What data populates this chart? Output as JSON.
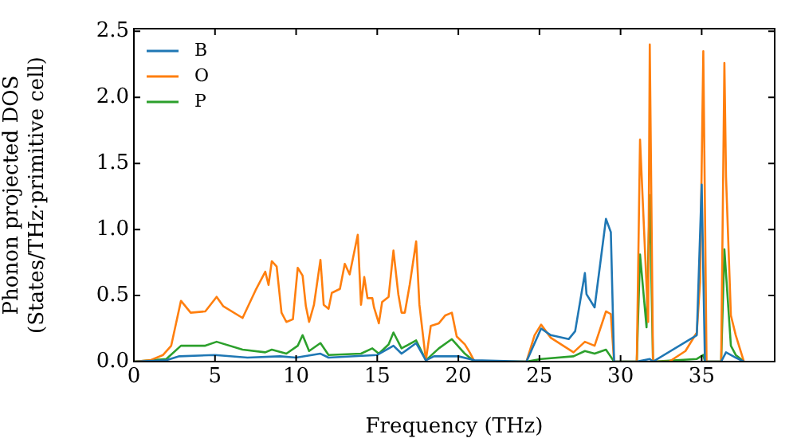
{
  "chart_data": {
    "type": "line",
    "xlabel": "Frequency (THz)",
    "ylabel": "Phonon projected DOS\n(States/THz·primitive cell)",
    "xlim": [
      0,
      39.5
    ],
    "xticks": [
      0,
      5,
      10,
      15,
      20,
      25,
      30,
      35
    ],
    "ylim": [
      0,
      2.52
    ],
    "yticks": [
      {
        "value": 0,
        "label": "0.0"
      },
      {
        "value": 0.5,
        "label": "0.5"
      },
      {
        "value": 1,
        "label": "1.0"
      },
      {
        "value": 1.5,
        "label": "1.5"
      },
      {
        "value": 2,
        "label": "2.0"
      },
      {
        "value": 2.5,
        "label": "2.5"
      }
    ],
    "grid": false,
    "legend": "top left",
    "marker": "none",
    "line_style": "solid",
    "series": [
      {
        "name": "B",
        "color": "#1f77b4",
        "x": [
          0,
          2,
          2.8,
          5,
          7,
          9,
          10,
          11.5,
          12,
          15,
          16,
          16.5,
          17.4,
          18,
          18.5,
          20,
          21,
          24.2,
          25.1,
          25.7,
          26.8,
          27.2,
          27.8,
          27.9,
          28.4,
          29.1,
          29.4,
          29.6,
          31.0,
          31.8,
          32.0,
          34.7,
          35.0,
          35.2,
          36.2,
          36.5,
          37.1,
          37.6
        ],
        "values": [
          0,
          0.01,
          0.04,
          0.05,
          0.03,
          0.04,
          0.03,
          0.06,
          0.03,
          0.05,
          0.12,
          0.06,
          0.14,
          0.01,
          0.04,
          0.04,
          0.01,
          0,
          0.25,
          0.2,
          0.17,
          0.23,
          0.67,
          0.51,
          0.41,
          1.08,
          0.98,
          0,
          0,
          0.02,
          0,
          0.2,
          1.34,
          0,
          0,
          0.07,
          0.03,
          0
        ]
      },
      {
        "name": "O",
        "color": "#ff7f0e",
        "x": [
          0,
          1,
          1.8,
          2.3,
          2.9,
          3.5,
          4.4,
          5.1,
          5.5,
          6.7,
          7.5,
          8.1,
          8.3,
          8.5,
          8.8,
          9.1,
          9.4,
          9.8,
          10.1,
          10.4,
          10.6,
          10.8,
          11.1,
          11.5,
          11.7,
          12.0,
          12.2,
          12.7,
          13.0,
          13.3,
          13.8,
          14.0,
          14.2,
          14.4,
          14.7,
          14.8,
          15.1,
          15.3,
          15.7,
          16.0,
          16.3,
          16.5,
          16.7,
          17.0,
          17.4,
          17.6,
          18.0,
          18.3,
          18.8,
          19.2,
          19.6,
          19.9,
          20.4,
          20.7,
          21.0,
          24.2,
          24.7,
          25.1,
          25.7,
          27.1,
          27.8,
          28.4,
          29.1,
          29.4,
          29.6,
          31.0,
          31.2,
          31.7,
          31.8,
          32.0,
          33.0,
          34.0,
          34.7,
          34.9,
          35.1,
          35.3,
          36.2,
          36.4,
          36.5,
          36.8,
          37.1,
          37.6
        ],
        "values": [
          0,
          0.01,
          0.05,
          0.12,
          0.46,
          0.37,
          0.38,
          0.49,
          0.42,
          0.33,
          0.54,
          0.68,
          0.58,
          0.76,
          0.72,
          0.37,
          0.3,
          0.32,
          0.71,
          0.65,
          0.42,
          0.3,
          0.43,
          0.77,
          0.43,
          0.4,
          0.52,
          0.55,
          0.74,
          0.66,
          0.96,
          0.43,
          0.64,
          0.48,
          0.48,
          0.41,
          0.29,
          0.45,
          0.49,
          0.84,
          0.51,
          0.37,
          0.37,
          0.58,
          0.91,
          0.43,
          0.01,
          0.27,
          0.29,
          0.35,
          0.37,
          0.19,
          0.13,
          0.07,
          0,
          0,
          0.2,
          0.28,
          0.18,
          0.07,
          0.15,
          0.12,
          0.38,
          0.36,
          0,
          0,
          1.68,
          0.3,
          2.4,
          0,
          0,
          0.08,
          0.22,
          0.6,
          2.35,
          0,
          0,
          2.26,
          1.4,
          0.35,
          0.2,
          0
        ]
      },
      {
        "name": "P",
        "color": "#2ca02c",
        "x": [
          0,
          2,
          2.9,
          4.4,
          5.1,
          6.7,
          8.1,
          8.5,
          9.4,
          10.1,
          10.4,
          10.8,
          11.5,
          12.0,
          14.0,
          14.7,
          15.1,
          15.7,
          16.0,
          16.5,
          17.4,
          18.0,
          18.8,
          19.6,
          20.4,
          21.0,
          24.2,
          25.1,
          27.1,
          27.8,
          28.4,
          29.1,
          29.6,
          31.0,
          31.2,
          31.6,
          31.8,
          32.0,
          34.7,
          35.1,
          35.2,
          36.2,
          36.4,
          36.8,
          37.1,
          37.6
        ],
        "values": [
          0,
          0.02,
          0.12,
          0.12,
          0.15,
          0.09,
          0.07,
          0.09,
          0.06,
          0.12,
          0.2,
          0.08,
          0.14,
          0.05,
          0.06,
          0.1,
          0.06,
          0.13,
          0.22,
          0.1,
          0.16,
          0.01,
          0.1,
          0.17,
          0.06,
          0,
          0,
          0.02,
          0.04,
          0.08,
          0.06,
          0.09,
          0,
          0,
          0.81,
          0.26,
          1.26,
          0,
          0.02,
          0.05,
          0,
          0,
          0.85,
          0.12,
          0.05,
          0
        ]
      }
    ]
  }
}
